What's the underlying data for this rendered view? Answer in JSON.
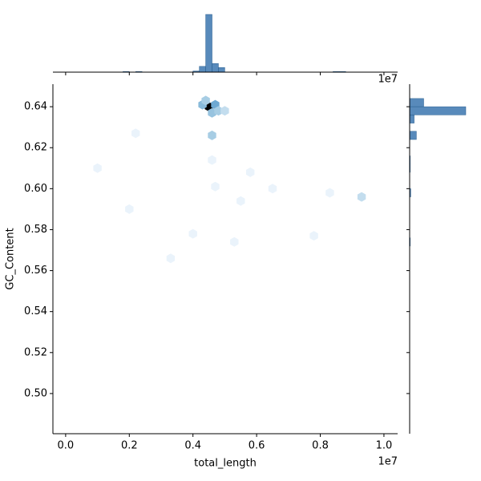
{
  "chart_data": [
    {
      "type": "hexbin",
      "x_label": "total_length",
      "y_label": "GC_Content",
      "x_offset_label": "1e7",
      "x": [
        0.45,
        0.43,
        0.47,
        0.44,
        0.46,
        0.48,
        0.5,
        0.46,
        0.46,
        0.47,
        0.93,
        0.83,
        0.58,
        0.65,
        0.55,
        0.2,
        0.53,
        0.33,
        0.1,
        0.22,
        0.4,
        0.78
      ],
      "y": [
        0.64,
        0.641,
        0.641,
        0.643,
        0.637,
        0.638,
        0.638,
        0.626,
        0.614,
        0.601,
        0.596,
        0.598,
        0.608,
        0.6,
        0.594,
        0.59,
        0.574,
        0.566,
        0.61,
        0.627,
        0.578,
        0.577
      ],
      "values": [
        50,
        6,
        8,
        4,
        5,
        4,
        2,
        4,
        1,
        1,
        2,
        1,
        1,
        1,
        1,
        1,
        1,
        1,
        1,
        1,
        1,
        1
      ],
      "colors": [
        "#eaf3fb",
        "#a6cde4",
        "#3a87c0",
        "#08306b",
        "#000000"
      ],
      "xlim": [
        -0.04,
        1.043
      ],
      "ylim": [
        0.4804,
        0.651
      ],
      "xticks": [
        {
          "value": 0,
          "label": "0.0"
        },
        0.2,
        0.4,
        0.6,
        0.8,
        {
          "value": 1,
          "label": "1.0"
        }
      ],
      "yticks": [
        {
          "value": 0.5,
          "label": "0.50"
        },
        0.52,
        0.54,
        0.56,
        0.58,
        {
          "value": 0.6,
          "label": "0.60"
        },
        0.62,
        0.64
      ]
    },
    {
      "type": "histogram",
      "offset_label": "1e7",
      "color": "#3b75af",
      "ylim": [
        0,
        100
      ],
      "bins": [
        0,
        0.02,
        0.04,
        0.06,
        0.08,
        0.1,
        0.12,
        0.14,
        0.16,
        0.18,
        0.2,
        0.22,
        0.24,
        0.26,
        0.28,
        0.3,
        0.32,
        0.34,
        0.36,
        0.38,
        0.4,
        0.42,
        0.44,
        0.46,
        0.48,
        0.5,
        0.52,
        0.54,
        0.56,
        0.58,
        0.6,
        0.62,
        0.64,
        0.66,
        0.68,
        0.7,
        0.72,
        0.74,
        0.76,
        0.78,
        0.8,
        0.82,
        0.84,
        0.86,
        0.88,
        0.9,
        0.92,
        0.94,
        0.96,
        0.98,
        1
      ],
      "values": [
        0,
        0,
        0,
        0,
        0,
        0,
        0,
        0,
        0,
        1,
        0,
        1,
        0,
        0,
        0,
        0,
        0,
        0,
        0,
        0,
        2,
        10,
        100,
        15,
        8,
        0,
        0,
        0,
        0,
        0,
        0,
        0,
        0,
        0,
        0,
        0,
        0,
        0,
        0,
        0,
        0,
        0,
        1,
        1,
        0,
        0,
        0,
        0,
        0,
        0
      ]
    },
    {
      "type": "histogram-h",
      "color": "#3b75af",
      "xlim": [
        0,
        100
      ],
      "bins": [
        0.572,
        0.576,
        0.58,
        0.584,
        0.588,
        0.592,
        0.596,
        0.6,
        0.604,
        0.608,
        0.612,
        0.616,
        0.62,
        0.624,
        0.628,
        0.632,
        0.636,
        0.64,
        0.644,
        0.648
      ],
      "values": [
        1,
        0,
        0,
        0,
        0,
        0,
        2,
        0,
        0,
        1,
        1,
        0,
        0,
        12,
        0,
        8,
        100,
        25,
        0
      ]
    }
  ]
}
